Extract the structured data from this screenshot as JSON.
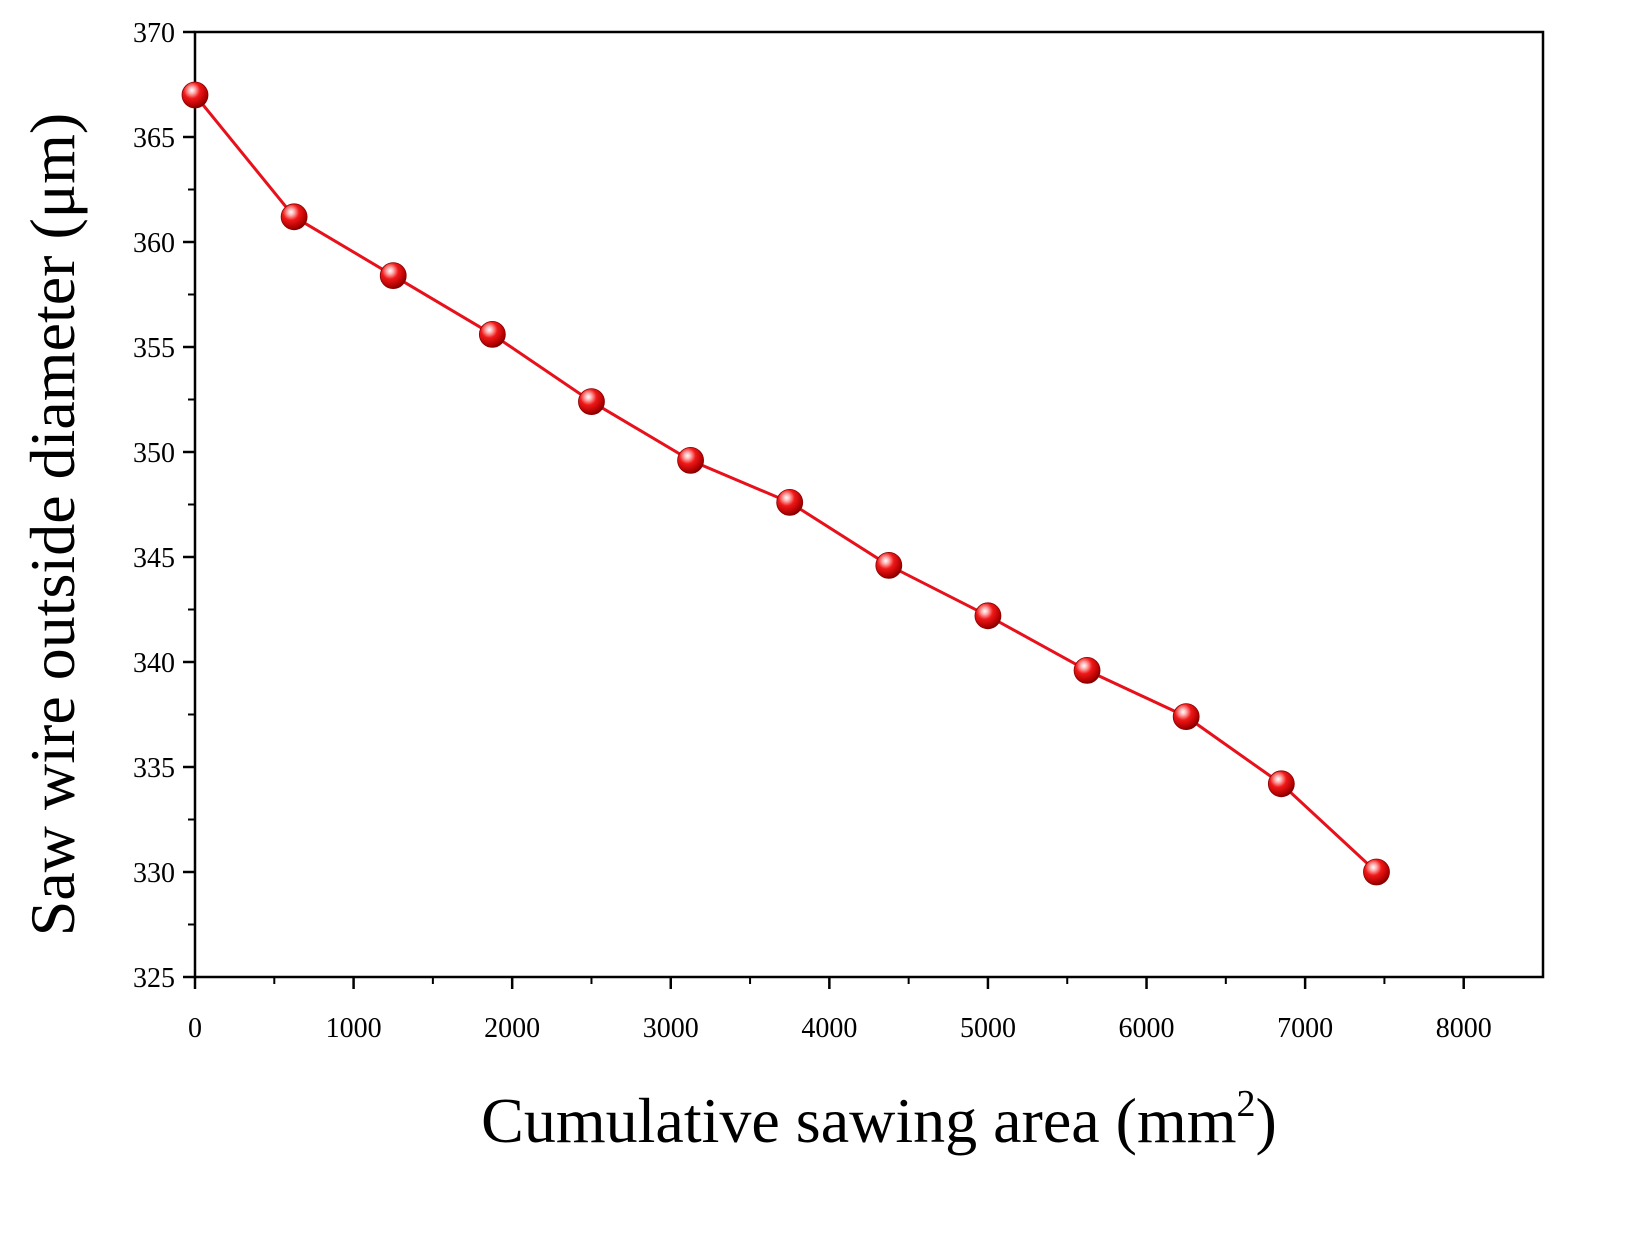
{
  "chart_data": {
    "type": "line",
    "title": "",
    "xlabel": "Cumulative sawing area (mm",
    "xlabel_sup": "2",
    "xlabel_close": ")",
    "ylabel": "Saw wire outside diameter (μm)",
    "xlim": [
      0,
      8500
    ],
    "ylim": [
      325,
      370
    ],
    "x_major_ticks": [
      0,
      1000,
      2000,
      3000,
      4000,
      5000,
      6000,
      7000,
      8000
    ],
    "x_minor_ticks": [
      500,
      1500,
      2500,
      3500,
      4500,
      5500,
      6500,
      7500
    ],
    "x_tick_labels": [
      "0",
      "1000",
      "2000",
      "3000",
      "4000",
      "5000",
      "6000",
      "7000",
      "8000"
    ],
    "y_major_ticks": [
      325,
      330,
      335,
      340,
      345,
      350,
      355,
      360,
      365,
      370
    ],
    "y_minor_ticks": [
      327.5,
      332.5,
      337.5,
      342.5,
      347.5,
      352.5,
      357.5,
      362.5,
      367.5
    ],
    "y_tick_labels": [
      "325",
      "330",
      "335",
      "340",
      "345",
      "350",
      "355",
      "360",
      "365",
      "370"
    ],
    "grid": false,
    "series": [
      {
        "name": "Saw wire outside diameter",
        "color": "#e8101a",
        "marker": "sphere",
        "x": [
          0,
          625,
          1250,
          1875,
          2500,
          3125,
          3750,
          4375,
          5000,
          5625,
          6250,
          6850,
          7450
        ],
        "y": [
          367.0,
          361.2,
          358.4,
          355.6,
          352.4,
          349.6,
          347.6,
          344.6,
          342.2,
          339.6,
          337.4,
          334.2,
          330.0
        ]
      }
    ]
  }
}
